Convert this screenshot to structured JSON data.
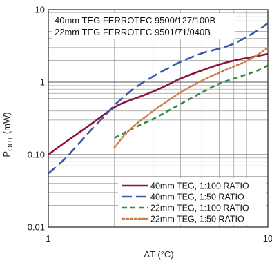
{
  "chart_data": {
    "type": "line",
    "title": "",
    "xlabel": "ΔT (°C)",
    "ylabel_main": "P",
    "ylabel_sub": "OUT",
    "ylabel_unit": " (mW)",
    "x_scale": "log",
    "y_scale": "log",
    "xlim": [
      1,
      10
    ],
    "ylim": [
      0.01,
      10
    ],
    "x_ticks": [
      {
        "value": 1,
        "label": "1"
      },
      {
        "value": 10,
        "label": "10"
      }
    ],
    "y_ticks": [
      {
        "value": 10,
        "label": "10"
      },
      {
        "value": 1,
        "label": "1"
      },
      {
        "value": 0.1,
        "label": "0.10"
      },
      {
        "value": 0.01,
        "label": "0.01"
      }
    ],
    "grid": true,
    "legend_position": "bottom-right",
    "annotations": [
      "40mm TEG FERROTEC 9500/127/100B",
      "22mm TEG FERROTEC 9501/71/040B"
    ],
    "series": [
      {
        "name": "40mm TEG, 1:100 RATIO",
        "color": "#8b1538",
        "dash": "solid",
        "x": [
          1,
          1.2,
          1.5,
          1.8,
          2.0,
          2.2,
          2.5,
          3.0,
          3.5,
          4.0,
          5.0,
          6.0,
          7.0,
          8.0,
          9.0,
          10.0
        ],
        "y": [
          0.1,
          0.15,
          0.24,
          0.36,
          0.45,
          0.52,
          0.6,
          0.74,
          0.92,
          1.12,
          1.45,
          1.75,
          1.98,
          2.15,
          2.3,
          2.45
        ]
      },
      {
        "name": "40mm TEG, 1:50 RATIO",
        "color": "#3a5aa8",
        "dash": "longdash",
        "x": [
          1,
          1.2,
          1.5,
          1.8,
          2.0,
          2.2,
          2.5,
          3.0,
          3.5,
          4.0,
          5.0,
          6.0,
          7.0,
          8.0,
          9.0,
          10.0
        ],
        "y": [
          0.055,
          0.09,
          0.19,
          0.34,
          0.48,
          0.62,
          0.85,
          1.2,
          1.55,
          1.9,
          2.5,
          2.9,
          3.4,
          4.2,
          5.2,
          6.5
        ]
      },
      {
        "name": "22mm TEG, 1:100 RATIO",
        "color": "#2e8b3e",
        "dash": "dash",
        "x": [
          2.0,
          2.5,
          3.0,
          3.5,
          4.0,
          5.0,
          6.0,
          7.0,
          8.0,
          9.0,
          10.0
        ],
        "y": [
          0.17,
          0.24,
          0.31,
          0.4,
          0.5,
          0.72,
          0.95,
          1.12,
          1.28,
          1.45,
          1.7
        ]
      },
      {
        "name": "22mm TEG, 1:50 RATIO",
        "color": "#c87f45",
        "dash": "dot",
        "x": [
          2.0,
          2.2,
          2.5,
          3.0,
          3.5,
          4.0,
          5.0,
          6.0,
          7.0,
          8.0,
          9.0,
          10.0
        ],
        "y": [
          0.125,
          0.18,
          0.26,
          0.4,
          0.55,
          0.72,
          1.05,
          1.35,
          1.65,
          1.95,
          2.4,
          3.0
        ]
      }
    ]
  }
}
